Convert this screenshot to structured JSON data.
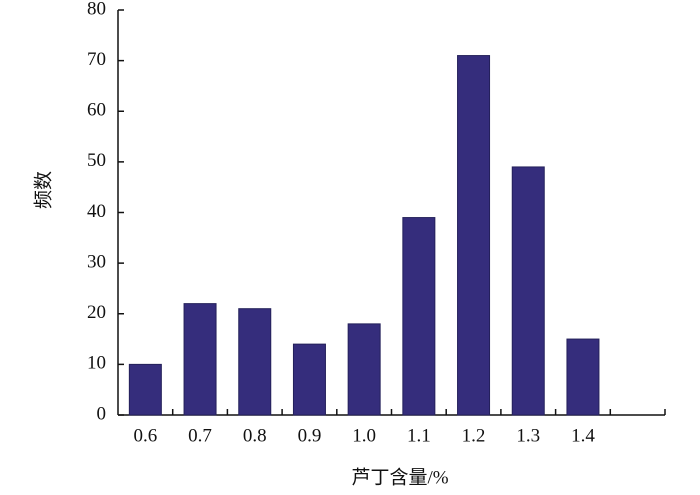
{
  "chart_data": {
    "type": "bar",
    "x_label": "芦丁含量/%",
    "y_label": "频数",
    "categories": [
      "0.6",
      "0.7",
      "0.8",
      "0.9",
      "1.0",
      "1.1",
      "1.2",
      "1.3",
      "1.4"
    ],
    "values": [
      10,
      22,
      21,
      14,
      18,
      39,
      71,
      49,
      15
    ],
    "color": "#352d7c",
    "ylim": [
      0,
      80
    ],
    "yticks": [
      0,
      10,
      20,
      30,
      40,
      50,
      60,
      70,
      80
    ]
  }
}
